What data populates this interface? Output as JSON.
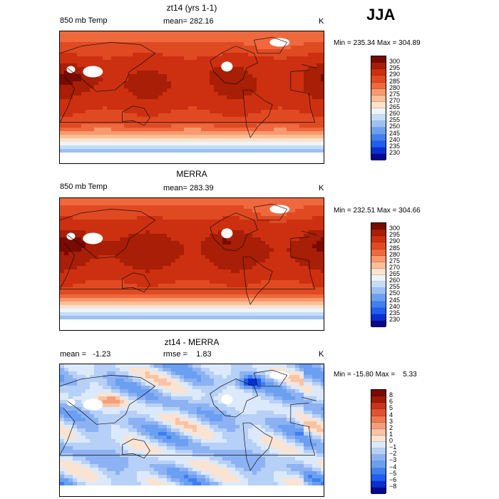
{
  "season": "JJA",
  "panels": [
    {
      "title": "zt14 (yrs 1-1)",
      "left_label": "850 mb Temp",
      "mid_label": "mean= 282.16",
      "unit": "K",
      "minmax": "Min = 235.34 Max = 304.89",
      "colorbar": [
        "300",
        "295",
        "290",
        "285",
        "280",
        "275",
        "270",
        "265",
        "260",
        "255",
        "250",
        "245",
        "240",
        "235",
        "230"
      ]
    },
    {
      "title": "MERRA",
      "left_label": "850 mb Temp",
      "mid_label": "mean= 283.39",
      "unit": "K",
      "minmax": "Min = 232.51 Max = 304.66",
      "colorbar": [
        "300",
        "295",
        "290",
        "285",
        "280",
        "275",
        "270",
        "265",
        "260",
        "255",
        "250",
        "245",
        "240",
        "235",
        "230"
      ]
    },
    {
      "title": "zt14 - MERRA",
      "left_label": "mean =   -1.23",
      "mid_label": "rmse =    1.83",
      "unit": "K",
      "minmax": "Min = -15.80 Max =    5.33",
      "colorbar": [
        "8",
        "6",
        "5",
        "4",
        "3",
        "2",
        "1",
        "0",
        "−1",
        "−2",
        "−3",
        "−4",
        "−5",
        "−6",
        "−8"
      ]
    }
  ],
  "chart_data": [
    {
      "type": "heatmap",
      "title": "zt14 (yrs 1-1)",
      "field": "850 mb Temp",
      "unit": "K",
      "mean": 282.16,
      "min": 235.34,
      "max": 304.89,
      "levels": [
        230,
        235,
        240,
        245,
        250,
        255,
        260,
        265,
        270,
        275,
        280,
        285,
        290,
        295,
        300
      ],
      "colors": [
        "#08088a",
        "#0a2fd0",
        "#1f5ef0",
        "#3f7ff0",
        "#6a9ff2",
        "#9cc0f5",
        "#c4dcf8",
        "#eef4fb",
        "#fde2cc",
        "#fbbf99",
        "#f79a6e",
        "#f0683e",
        "#e04a22",
        "#cd3010",
        "#a81e06",
        "#7a0a00"
      ]
    },
    {
      "type": "heatmap",
      "title": "MERRA",
      "field": "850 mb Temp",
      "unit": "K",
      "mean": 283.39,
      "min": 232.51,
      "max": 304.66,
      "levels": [
        230,
        235,
        240,
        245,
        250,
        255,
        260,
        265,
        270,
        275,
        280,
        285,
        290,
        295,
        300
      ],
      "colors": [
        "#08088a",
        "#0a2fd0",
        "#1f5ef0",
        "#3f7ff0",
        "#6a9ff2",
        "#9cc0f5",
        "#c4dcf8",
        "#eef4fb",
        "#fde2cc",
        "#fbbf99",
        "#f79a6e",
        "#f0683e",
        "#e04a22",
        "#cd3010",
        "#a81e06",
        "#7a0a00"
      ]
    },
    {
      "type": "heatmap",
      "title": "zt14 - MERRA",
      "unit": "K",
      "mean": -1.23,
      "rmse": 1.83,
      "min": -15.8,
      "max": 5.33,
      "levels": [
        -8,
        -6,
        -5,
        -4,
        -3,
        -2,
        -1,
        0,
        1,
        2,
        3,
        4,
        5,
        6,
        8
      ],
      "colors": [
        "#08088a",
        "#0a2fd0",
        "#1f5ef0",
        "#3f7ff0",
        "#6a9ff2",
        "#8cb2f3",
        "#b6d0f7",
        "#dce9fa",
        "#fbe3d2",
        "#f8c4a6",
        "#f3a07a",
        "#ec7a52",
        "#e05230",
        "#c8331a",
        "#a01a08",
        "#7a0a00"
      ]
    }
  ]
}
